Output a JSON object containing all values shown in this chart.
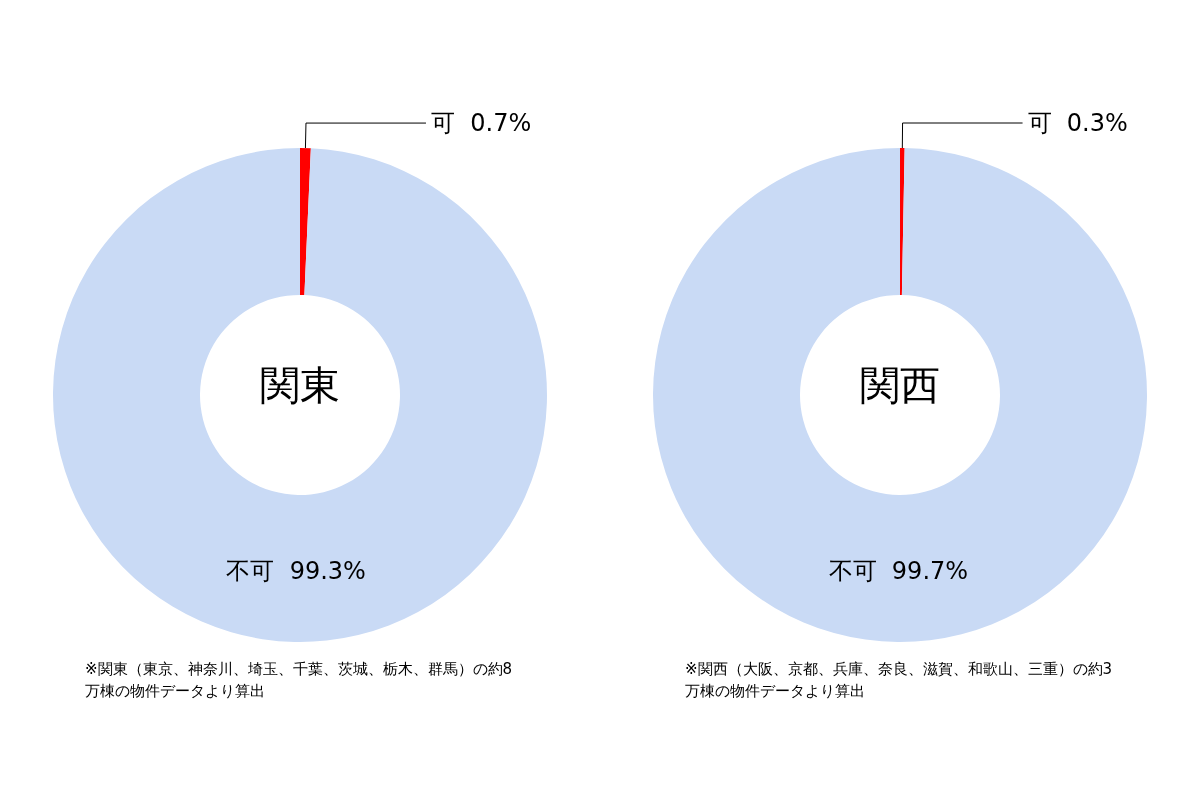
{
  "chart_data": [
    {
      "type": "donut",
      "title": "関東",
      "categories": [
        "可",
        "不可"
      ],
      "values": [
        0.7,
        99.3
      ],
      "value_labels": [
        "0.7%",
        "99.3%"
      ],
      "colors": [
        "#ff0000",
        "#c9daf5"
      ],
      "legend": false,
      "annotations": [
        "※関東（東京、神奈川、埼玉、千葉、茨城、栃木、群馬）の約8万棟の物件データより算出"
      ]
    },
    {
      "type": "donut",
      "title": "関西",
      "categories": [
        "可",
        "不可"
      ],
      "values": [
        0.3,
        99.7
      ],
      "value_labels": [
        "0.3%",
        "99.7%"
      ],
      "colors": [
        "#ff0000",
        "#c9daf5"
      ],
      "legend": false,
      "annotations": [
        "※関西（大阪、京都、兵庫、奈良、滋賀、和歌山、三重）の約3万棟の物件データより算出"
      ]
    }
  ]
}
